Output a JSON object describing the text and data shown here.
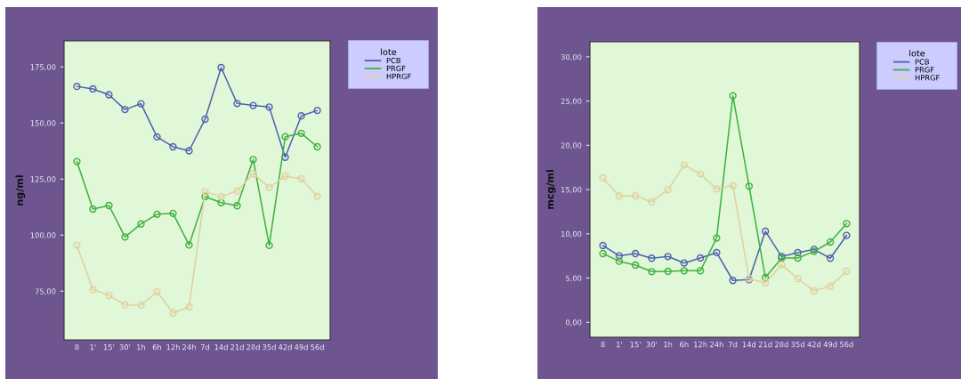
{
  "chart_data": [
    {
      "type": "line",
      "ylabel": "ng/ml",
      "legend_title": "lote",
      "legend": "right",
      "marker": "circle",
      "grid": false,
      "categories": [
        "8",
        "1'",
        "15'",
        "30'",
        "1h",
        "6h",
        "12h",
        "24h",
        "7d",
        "14d",
        "21d",
        "28d",
        "35d",
        "42d",
        "49d",
        "56d"
      ],
      "ylim": [
        53.3,
        186.6
      ],
      "yticks": [
        {
          "value": 75,
          "label": "75,00"
        },
        {
          "value": 100,
          "label": "100,00"
        },
        {
          "value": 125,
          "label": "125,00"
        },
        {
          "value": 150,
          "label": "150,00"
        },
        {
          "value": 175,
          "label": "175,00"
        }
      ],
      "series": [
        {
          "name": "PCB",
          "color": "#5060b0",
          "values": [
            166.3,
            165.2,
            162.6,
            156.0,
            158.6,
            143.8,
            139.4,
            137.6,
            151.7,
            174.7,
            158.7,
            157.8,
            157.1,
            134.7,
            153.2,
            155.6
          ]
        },
        {
          "name": "PRGF",
          "color": "#40b040",
          "values": [
            132.8,
            111.6,
            113.2,
            99.2,
            105.0,
            109.3,
            109.7,
            95.6,
            117.2,
            114.5,
            113.1,
            133.7,
            95.4,
            143.9,
            145.4,
            139.4
          ]
        },
        {
          "name": "HPRGF",
          "color": "#e0d0a0",
          "values": [
            95.5,
            75.7,
            73.1,
            68.9,
            68.8,
            74.7,
            65.3,
            68.0,
            119.3,
            117.2,
            119.7,
            127.4,
            121.3,
            126.3,
            125.1,
            117.3
          ]
        }
      ]
    },
    {
      "type": "line",
      "ylabel": "mcg/ml",
      "legend_title": "lote",
      "legend": "right",
      "marker": "circle",
      "grid": false,
      "categories": [
        "8",
        "1'",
        "15'",
        "30'",
        "1h",
        "6h",
        "12h",
        "24h",
        "7d",
        "14d",
        "21d",
        "28d",
        "35d",
        "42d",
        "49d",
        "56d"
      ],
      "ylim": [
        -1.68,
        31.7
      ],
      "yticks": [
        {
          "value": 0,
          "label": "0,00"
        },
        {
          "value": 5,
          "label": "5,00"
        },
        {
          "value": 10,
          "label": "10,00"
        },
        {
          "value": 15,
          "label": "15,00"
        },
        {
          "value": 20,
          "label": "20,00"
        },
        {
          "value": 25,
          "label": "25,00"
        },
        {
          "value": 30,
          "label": "30,00"
        }
      ],
      "series": [
        {
          "name": "PCB",
          "color": "#5060b0",
          "values": [
            8.68,
            7.51,
            7.77,
            7.24,
            7.44,
            6.7,
            7.27,
            7.88,
            4.73,
            4.83,
            10.29,
            7.44,
            7.88,
            8.24,
            7.24,
            9.82
          ]
        },
        {
          "name": "PRGF",
          "color": "#40b040",
          "values": [
            7.77,
            6.9,
            6.47,
            5.73,
            5.76,
            5.83,
            5.83,
            9.52,
            25.6,
            15.38,
            5.06,
            7.27,
            7.27,
            8.01,
            9.08,
            11.16
          ]
        },
        {
          "name": "HPRGF",
          "color": "#e0d0a0",
          "values": [
            16.29,
            14.28,
            14.31,
            13.61,
            14.98,
            17.79,
            16.76,
            15.08,
            15.45,
            4.93,
            4.46,
            6.5,
            4.93,
            3.55,
            4.09,
            5.76
          ]
        }
      ]
    }
  ]
}
